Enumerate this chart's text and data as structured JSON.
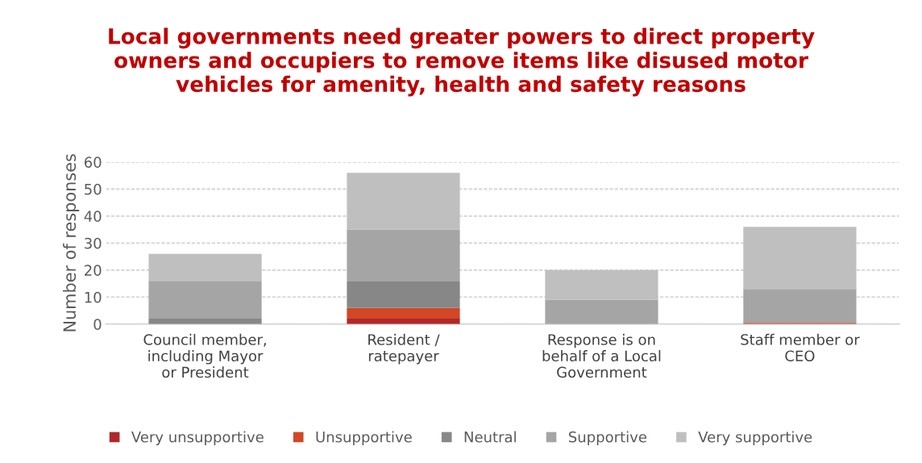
{
  "chart_data": {
    "type": "bar",
    "stacked": true,
    "title": "Local governments need greater powers to direct property owners and occupiers to remove items like disused motor vehicles for amenity, health and safety reasons",
    "ylabel": "Number of responses",
    "categories": [
      "Council member, including Mayor or President",
      "Resident / ratepayer",
      "Response is on behalf of a Local Government",
      "Staff member or CEO"
    ],
    "series": [
      {
        "name": "Very unsupportive",
        "color": "#b0282a",
        "values": [
          0,
          2,
          0,
          0
        ]
      },
      {
        "name": "Unsupportive",
        "color": "#d24726",
        "values": [
          0,
          4,
          0,
          0.5
        ]
      },
      {
        "name": "Neutral",
        "color": "#878787",
        "values": [
          2,
          10,
          0,
          0
        ]
      },
      {
        "name": "Supportive",
        "color": "#a5a5a5",
        "values": [
          14,
          19,
          9,
          12.5
        ]
      },
      {
        "name": "Very supportive",
        "color": "#bfbfbf",
        "values": [
          10,
          21,
          11,
          23
        ]
      }
    ],
    "ylim": [
      0,
      60
    ],
    "yticks": [
      0,
      10,
      20,
      30,
      40,
      50,
      60
    ],
    "grid": "y",
    "legend": "bottom"
  }
}
